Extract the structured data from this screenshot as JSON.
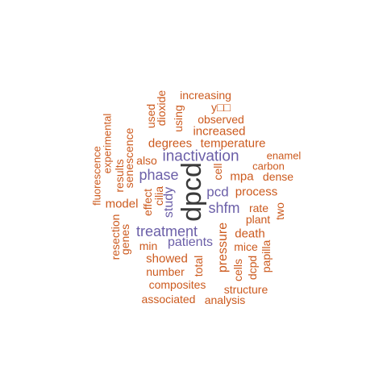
{
  "colors": {
    "dark": "#3a3a3a",
    "purple": "#6b5fa8",
    "orange": "#cc5a1e"
  },
  "words": [
    {
      "text": "dpcd",
      "color": "dark"
    },
    {
      "text": "inactivation",
      "color": "purple"
    },
    {
      "text": "phase",
      "color": "purple"
    },
    {
      "text": "pcd",
      "color": "purple"
    },
    {
      "text": "shfm",
      "color": "purple"
    },
    {
      "text": "treatment",
      "color": "purple"
    },
    {
      "text": "patients",
      "color": "purple"
    },
    {
      "text": "study",
      "color": "purple"
    },
    {
      "text": "increasing",
      "color": "orange"
    },
    {
      "text": "y□□",
      "color": "orange"
    },
    {
      "text": "used",
      "color": "orange"
    },
    {
      "text": "dioxide",
      "color": "orange"
    },
    {
      "text": "using",
      "color": "orange"
    },
    {
      "text": "observed",
      "color": "orange"
    },
    {
      "text": "increased",
      "color": "orange"
    },
    {
      "text": "degrees",
      "color": "orange"
    },
    {
      "text": "temperature",
      "color": "orange"
    },
    {
      "text": "experimental",
      "color": "orange"
    },
    {
      "text": "senescence",
      "color": "orange"
    },
    {
      "text": "fluorescence",
      "color": "orange"
    },
    {
      "text": "results",
      "color": "orange"
    },
    {
      "text": "also",
      "color": "orange"
    },
    {
      "text": "enamel",
      "color": "orange"
    },
    {
      "text": "carbon",
      "color": "orange"
    },
    {
      "text": "cell",
      "color": "orange"
    },
    {
      "text": "mpa",
      "color": "orange"
    },
    {
      "text": "dense",
      "color": "orange"
    },
    {
      "text": "process",
      "color": "orange"
    },
    {
      "text": "cilia",
      "color": "orange"
    },
    {
      "text": "effect",
      "color": "orange"
    },
    {
      "text": "model",
      "color": "orange"
    },
    {
      "text": "rate",
      "color": "orange"
    },
    {
      "text": "two",
      "color": "orange"
    },
    {
      "text": "plant",
      "color": "orange"
    },
    {
      "text": "genes",
      "color": "orange"
    },
    {
      "text": "resection",
      "color": "orange"
    },
    {
      "text": "death",
      "color": "orange"
    },
    {
      "text": "min",
      "color": "orange"
    },
    {
      "text": "pressure",
      "color": "orange"
    },
    {
      "text": "mice",
      "color": "orange"
    },
    {
      "text": "showed",
      "color": "orange"
    },
    {
      "text": "total",
      "color": "orange"
    },
    {
      "text": "papilla",
      "color": "orange"
    },
    {
      "text": "cells",
      "color": "orange"
    },
    {
      "text": "dcpd",
      "color": "orange"
    },
    {
      "text": "number",
      "color": "orange"
    },
    {
      "text": "composites",
      "color": "orange"
    },
    {
      "text": "structure",
      "color": "orange"
    },
    {
      "text": "associated",
      "color": "orange"
    },
    {
      "text": "analysis",
      "color": "orange"
    }
  ]
}
